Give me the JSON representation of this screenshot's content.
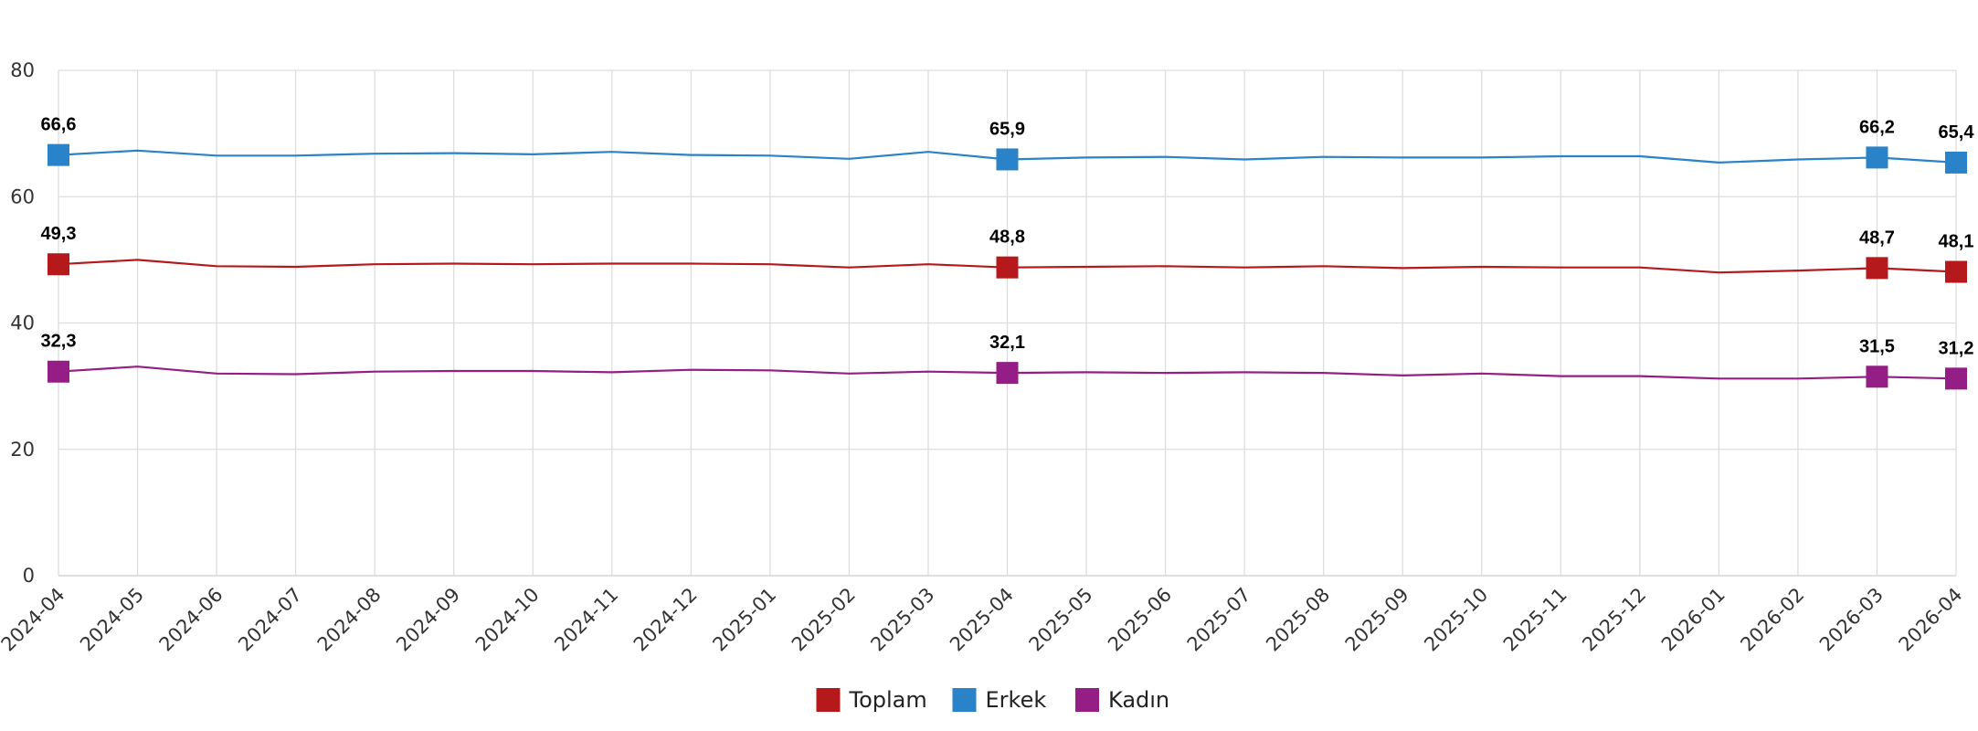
{
  "chart_data": {
    "type": "line",
    "x": [
      "2024-04",
      "2024-05",
      "2024-06",
      "2024-07",
      "2024-08",
      "2024-09",
      "2024-10",
      "2024-11",
      "2024-12",
      "2025-01",
      "2025-02",
      "2025-03",
      "2025-04",
      "2025-05",
      "2025-06",
      "2025-07",
      "2025-08",
      "2025-09",
      "2025-10",
      "2025-11",
      "2025-12",
      "2026-01",
      "2026-02",
      "2026-03",
      "2026-04"
    ],
    "series": [
      {
        "name": "Toplam",
        "color": "#b5191c",
        "values": [
          49.3,
          50.0,
          49.0,
          48.9,
          49.3,
          49.4,
          49.3,
          49.4,
          49.4,
          49.3,
          48.8,
          49.3,
          48.8,
          48.9,
          49.0,
          48.8,
          49.0,
          48.7,
          48.9,
          48.8,
          48.8,
          48.0,
          48.3,
          48.7,
          48.1
        ],
        "labels": {
          "0": "49,3",
          "12": "48,8",
          "23": "48,7",
          "24": "48,1"
        }
      },
      {
        "name": "Erkek",
        "color": "#2a82c8",
        "values": [
          66.6,
          67.3,
          66.5,
          66.5,
          66.8,
          66.9,
          66.7,
          67.1,
          66.6,
          66.5,
          66.0,
          67.1,
          65.9,
          66.2,
          66.3,
          65.9,
          66.3,
          66.2,
          66.2,
          66.4,
          66.4,
          65.4,
          65.9,
          66.2,
          65.4
        ],
        "labels": {
          "0": "66,6",
          "12": "65,9",
          "23": "66,2",
          "24": "65,4"
        }
      },
      {
        "name": "Kadın",
        "color": "#951e86",
        "values": [
          32.3,
          33.1,
          32.0,
          31.9,
          32.3,
          32.4,
          32.4,
          32.2,
          32.6,
          32.5,
          32.0,
          32.3,
          32.1,
          32.2,
          32.1,
          32.2,
          32.1,
          31.7,
          32.0,
          31.6,
          31.6,
          31.2,
          31.2,
          31.5,
          31.2
        ],
        "labels": {
          "0": "32,3",
          "12": "32,1",
          "23": "31,5",
          "24": "31,2"
        }
      }
    ],
    "yticks": [
      0,
      20,
      40,
      60,
      80
    ],
    "ylim": [
      0,
      80
    ],
    "grid": true,
    "legend_position": "bottom-center"
  }
}
